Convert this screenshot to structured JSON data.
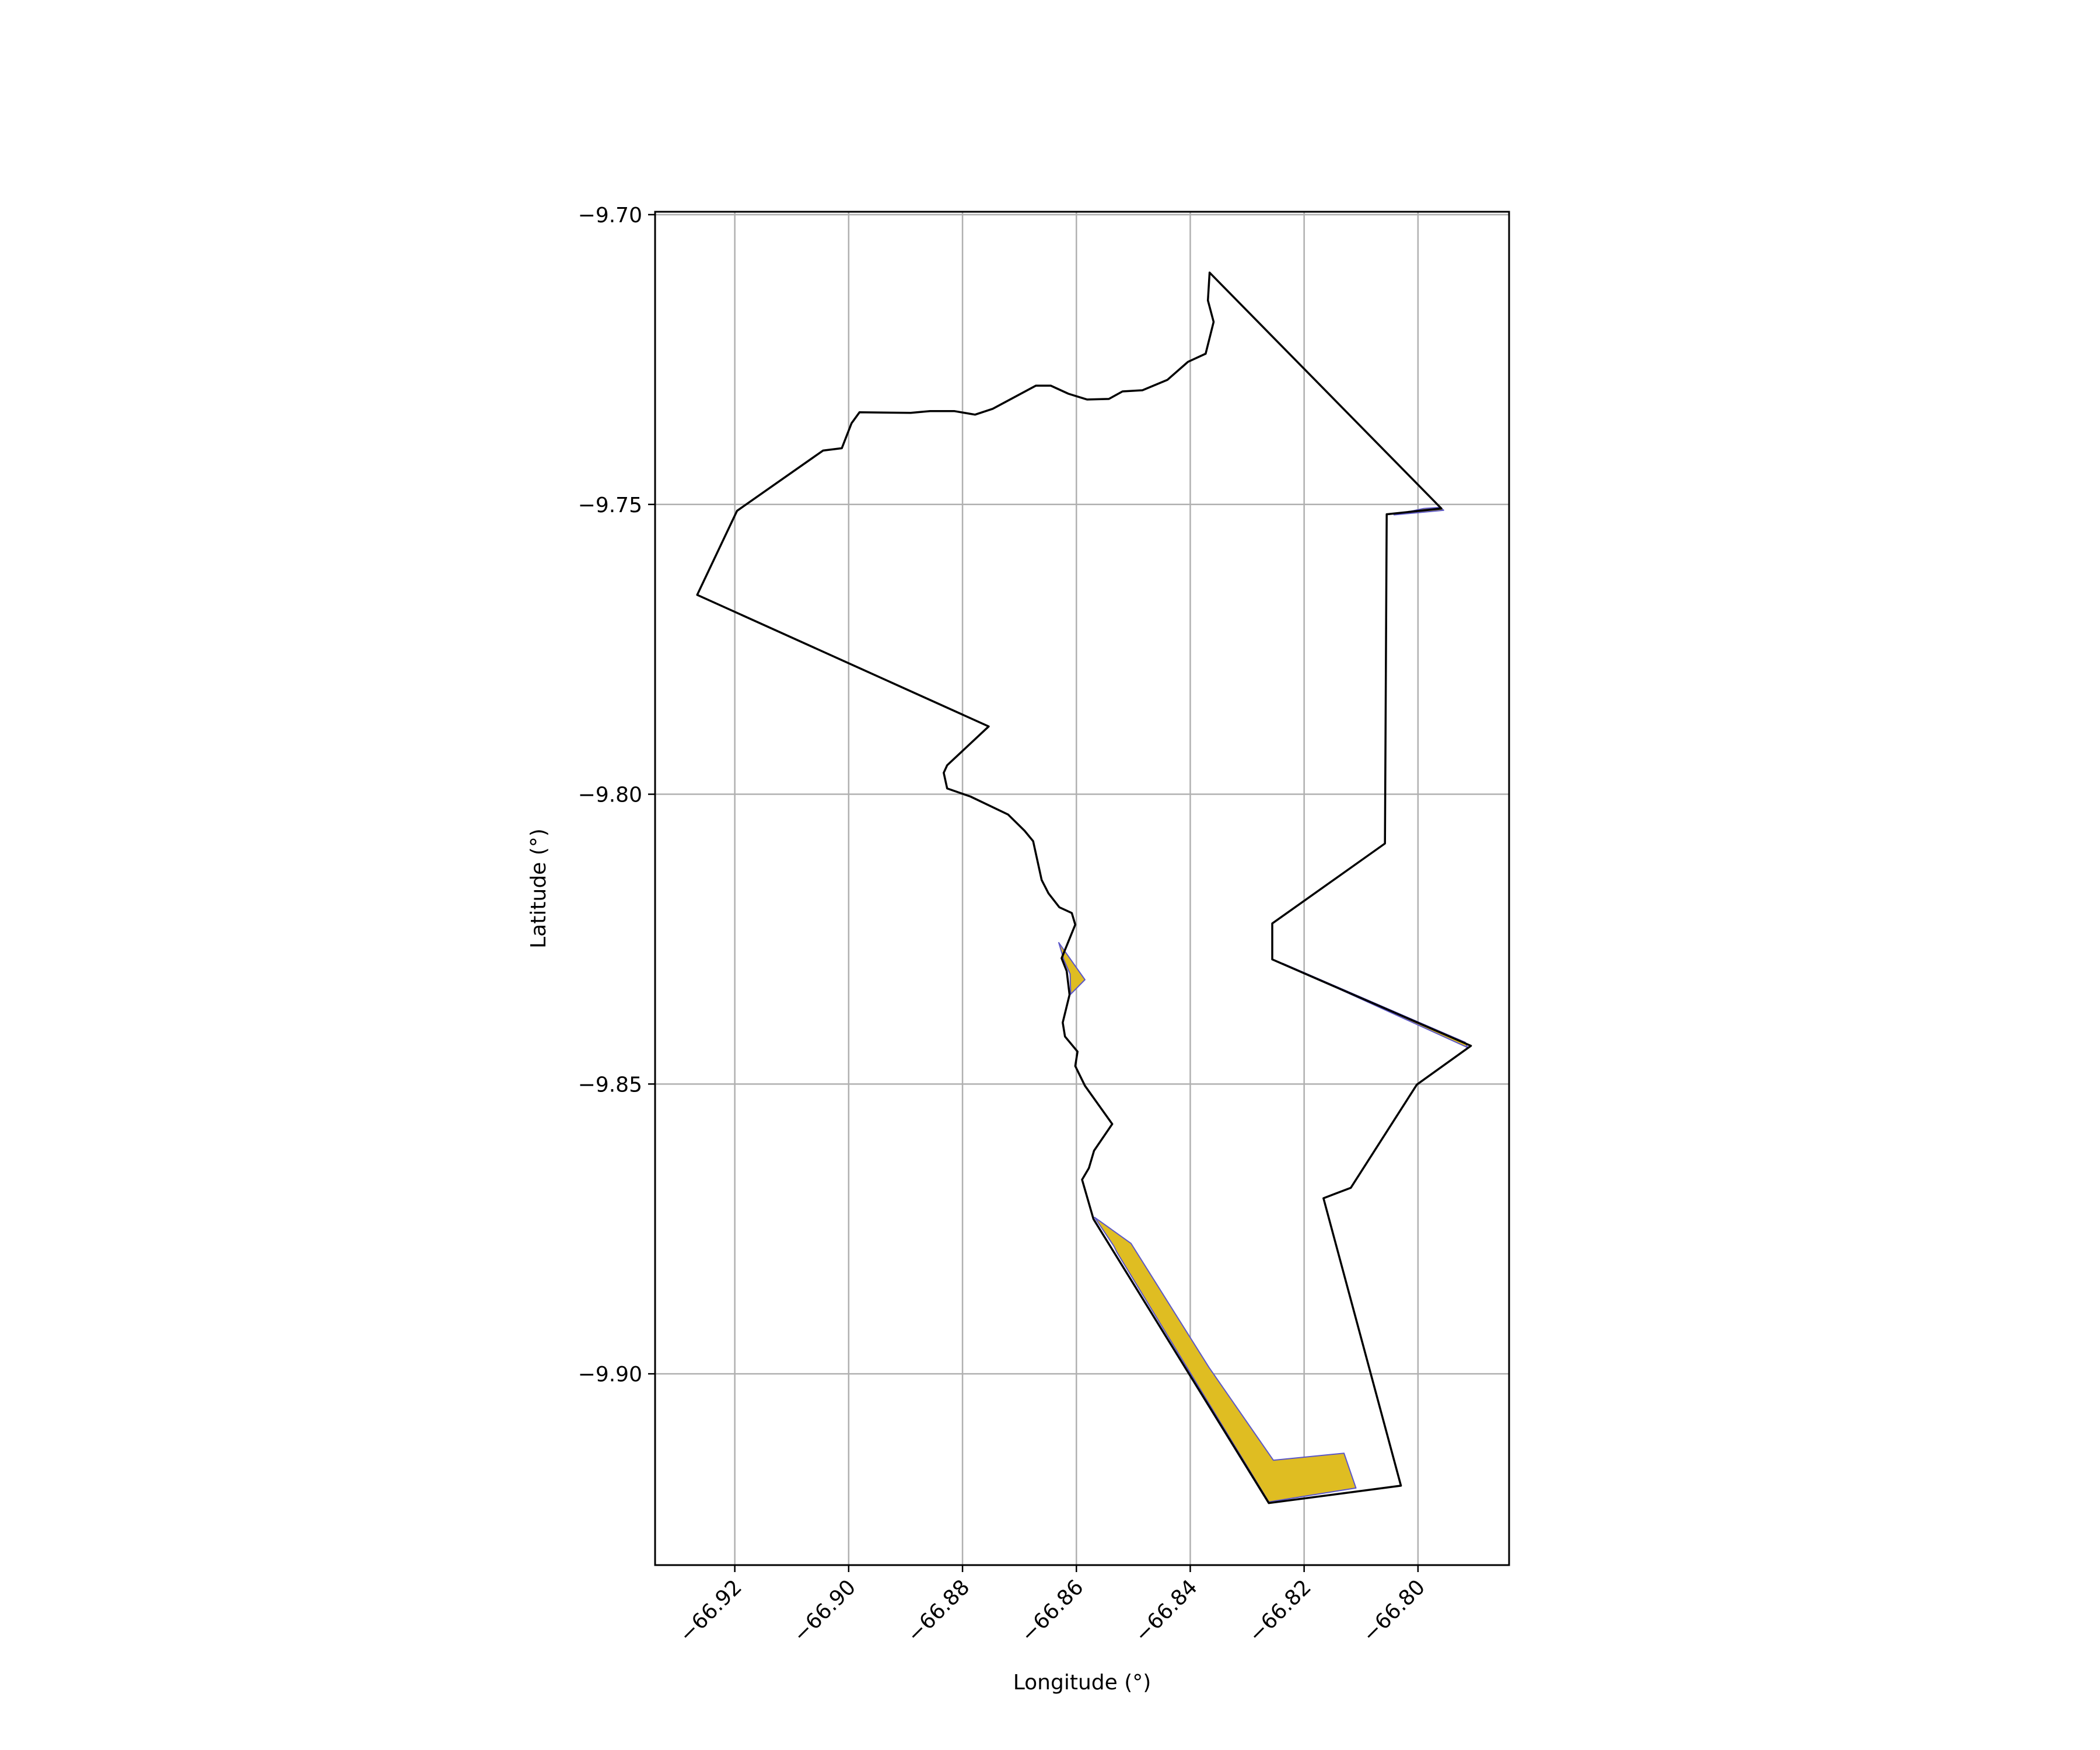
{
  "map": {
    "xlabel": "Longitude (°)",
    "ylabel": "Latitude (°)",
    "xlim": [
      -66.934,
      -66.784
    ],
    "ylim": [
      -9.933,
      -9.6995
    ],
    "x_ticks": [
      {
        "value": -66.92,
        "label": "−66.92"
      },
      {
        "value": -66.9,
        "label": "−66.90"
      },
      {
        "value": -66.88,
        "label": "−66.88"
      },
      {
        "value": -66.86,
        "label": "−66.86"
      },
      {
        "value": -66.84,
        "label": "−66.84"
      },
      {
        "value": -66.82,
        "label": "−66.82"
      },
      {
        "value": -66.8,
        "label": "−66.80"
      }
    ],
    "y_ticks": [
      {
        "value": -9.7,
        "label": "−9.70"
      },
      {
        "value": -9.75,
        "label": "−9.75"
      },
      {
        "value": -9.8,
        "label": "−9.80"
      },
      {
        "value": -9.85,
        "label": "−9.85"
      },
      {
        "value": -9.9,
        "label": "−9.90"
      }
    ],
    "grid": true,
    "colors": {
      "outline": "#000000",
      "fill": "#dfbd22",
      "fill_edge": "#5b57c8",
      "grid": "#b0b0b0",
      "axes": "#000000"
    },
    "boundary": [
      [
        -66.8366,
        -9.71
      ],
      [
        -66.7959,
        -9.7507
      ],
      [
        -66.8055,
        -9.7517
      ],
      [
        -66.8058,
        -9.8085
      ],
      [
        -66.8256,
        -9.8223
      ],
      [
        -66.8256,
        -9.8285
      ],
      [
        -66.7907,
        -9.8434
      ],
      [
        -66.8002,
        -9.8501
      ],
      [
        -66.8118,
        -9.8679
      ],
      [
        -66.8166,
        -9.8697
      ],
      [
        -66.803,
        -9.9193
      ],
      [
        -66.8262,
        -9.9223
      ],
      [
        -66.857,
        -9.8733
      ],
      [
        -66.859,
        -9.8665
      ],
      [
        -66.8578,
        -9.8645
      ],
      [
        -66.8569,
        -9.8615
      ],
      [
        -66.8537,
        -9.8569
      ],
      [
        -66.8585,
        -9.8503
      ],
      [
        -66.8602,
        -9.8469
      ],
      [
        -66.8598,
        -9.8444
      ],
      [
        -66.862,
        -9.8418
      ],
      [
        -66.8624,
        -9.8394
      ],
      [
        -66.8612,
        -9.8346
      ],
      [
        -66.8617,
        -9.8305
      ],
      [
        -66.8626,
        -9.8283
      ],
      [
        -66.8602,
        -9.8225
      ],
      [
        -66.8608,
        -9.8205
      ],
      [
        -66.863,
        -9.8195
      ],
      [
        -66.8649,
        -9.8171
      ],
      [
        -66.8661,
        -9.8148
      ],
      [
        -66.8676,
        -9.8081
      ],
      [
        -66.8691,
        -9.8063
      ],
      [
        -66.872,
        -9.8035
      ],
      [
        -66.8786,
        -9.8004
      ],
      [
        -66.8827,
        -9.799
      ],
      [
        -66.8833,
        -9.7963
      ],
      [
        -66.8827,
        -9.795
      ],
      [
        -66.8754,
        -9.7883
      ],
      [
        -66.9266,
        -9.7656
      ],
      [
        -66.9196,
        -9.7511
      ],
      [
        -66.9045,
        -9.7407
      ],
      [
        -66.9012,
        -9.7403
      ],
      [
        -66.8995,
        -9.736
      ],
      [
        -66.8981,
        -9.7341
      ],
      [
        -66.8891,
        -9.7342
      ],
      [
        -66.8857,
        -9.7339
      ],
      [
        -66.8814,
        -9.7339
      ],
      [
        -66.8778,
        -9.7345
      ],
      [
        -66.8747,
        -9.7335
      ],
      [
        -66.8671,
        -9.7295
      ],
      [
        -66.8645,
        -9.7295
      ],
      [
        -66.8614,
        -9.7309
      ],
      [
        -66.8581,
        -9.7319
      ],
      [
        -66.8543,
        -9.7318
      ],
      [
        -66.8519,
        -9.7305
      ],
      [
        -66.8484,
        -9.7303
      ],
      [
        -66.844,
        -9.7285
      ],
      [
        -66.8404,
        -9.7254
      ],
      [
        -66.8373,
        -9.724
      ],
      [
        -66.8359,
        -9.7185
      ],
      [
        -66.8369,
        -9.7148
      ]
    ],
    "filled_regions": [
      [
        [
          -66.8631,
          -9.8256
        ],
        [
          -66.8622,
          -9.8286
        ],
        [
          -66.8611,
          -9.831
        ],
        [
          -66.861,
          -9.8345
        ],
        [
          -66.8585,
          -9.832
        ]
      ],
      [
        [
          -66.8568,
          -9.873
        ],
        [
          -66.8504,
          -9.8775
        ],
        [
          -66.8367,
          -9.8989
        ],
        [
          -66.8254,
          -9.9149
        ],
        [
          -66.813,
          -9.9137
        ],
        [
          -66.8109,
          -9.9197
        ],
        [
          -66.8262,
          -9.9221
        ],
        [
          -66.8529,
          -9.879
        ],
        [
          -66.8534,
          -9.878
        ]
      ],
      [
        [
          -66.8042,
          -9.7518
        ],
        [
          -66.799,
          -9.7507
        ],
        [
          -66.7961,
          -9.7505
        ],
        [
          -66.7955,
          -9.751
        ]
      ],
      [
        [
          -66.8237,
          -9.8292
        ],
        [
          -66.7913,
          -9.8437
        ],
        [
          -66.7917,
          -9.8428
        ]
      ]
    ]
  }
}
